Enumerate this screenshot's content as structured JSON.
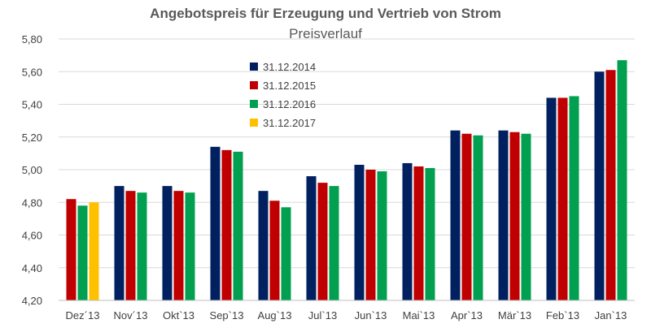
{
  "chart_data": {
    "type": "bar",
    "title": "Angebotspreis für Erzeugung und Vertrieb von Strom",
    "subtitle": "Preisverlauf",
    "xlabel": "",
    "ylabel": "",
    "categories": [
      "Dez´13",
      "Nov´13",
      "Okt`13",
      "Sep`13",
      "Aug`13",
      "Jul`13",
      "Jun`13",
      "Mai`13",
      "Apr`13",
      "Mär`13",
      "Feb`13",
      "Jan`13"
    ],
    "series": [
      {
        "name": "31.12.2014",
        "color": "#002060",
        "values": [
          null,
          4.9,
          4.9,
          5.14,
          4.87,
          4.96,
          5.03,
          5.04,
          5.24,
          5.24,
          5.44,
          5.6
        ]
      },
      {
        "name": "31.12.2015",
        "color": "#C00000",
        "values": [
          4.82,
          4.87,
          4.87,
          5.12,
          4.81,
          4.92,
          5.0,
          5.02,
          5.22,
          5.23,
          5.44,
          5.61
        ]
      },
      {
        "name": "31.12.2016",
        "color": "#00A050",
        "values": [
          4.78,
          4.86,
          4.86,
          5.11,
          4.77,
          4.9,
          4.99,
          5.01,
          5.21,
          5.22,
          5.45,
          5.67
        ]
      },
      {
        "name": "31.12.2017",
        "color": "#FFC000",
        "values": [
          4.8,
          null,
          null,
          null,
          null,
          null,
          null,
          null,
          null,
          null,
          null,
          null
        ]
      }
    ],
    "ylim": [
      4.2,
      5.8
    ],
    "yticks": [
      "4,20",
      "4,40",
      "4,60",
      "4,80",
      "5,00",
      "5,20",
      "5,40",
      "5,60",
      "5,80"
    ],
    "grid": true,
    "legend_position": "top-left, inside plot"
  }
}
